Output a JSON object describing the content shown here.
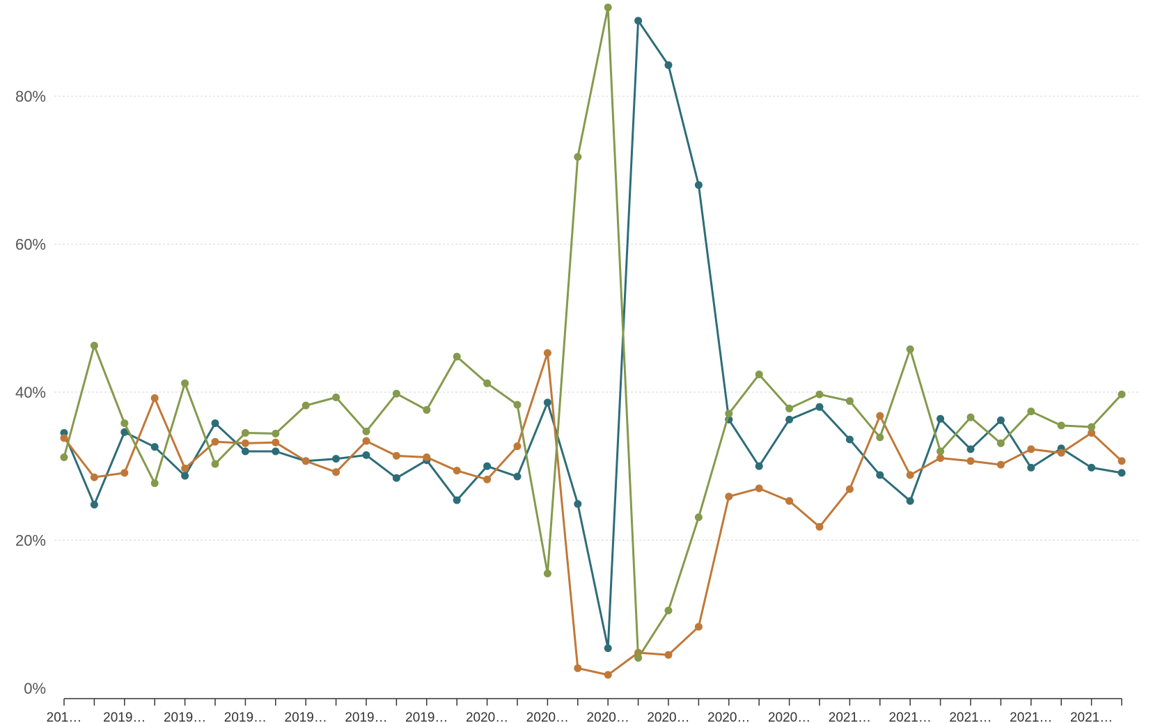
{
  "chart_data": {
    "type": "line",
    "title": "",
    "xlabel": "",
    "ylabel": "",
    "ylim": [
      0,
      0.93
    ],
    "yticks": [
      0,
      0.2,
      0.4,
      0.6,
      0.8
    ],
    "ytick_labels": [
      "0%",
      "20%",
      "40%",
      "60%",
      "80%"
    ],
    "grid": true,
    "legend": "none",
    "x_tick_labels": [
      "201…",
      "2019…",
      "2019…",
      "2019…",
      "2019…",
      "2019…",
      "2019…",
      "2020…",
      "2020…",
      "2020…",
      "2020…",
      "2020…",
      "2020…",
      "2021…",
      "2021…",
      "2021…",
      "2021…",
      "2021…"
    ],
    "series": [
      {
        "color": "#2d6d78",
        "values": [
          0.345,
          0.248,
          0.346,
          0.326,
          0.287,
          0.358,
          0.32,
          0.32,
          0.307,
          0.31,
          0.315,
          0.284,
          0.308,
          0.254,
          0.3,
          0.286,
          0.386,
          0.249,
          0.054,
          0.902,
          0.842,
          0.68,
          0.363,
          0.3,
          0.363,
          0.38,
          0.336,
          0.288,
          0.253,
          0.364,
          0.323,
          0.362,
          0.298,
          0.324,
          0.298,
          0.291
        ]
      },
      {
        "color": "#c07838",
        "values": [
          0.338,
          0.285,
          0.291,
          0.392,
          0.297,
          0.333,
          0.331,
          0.332,
          0.307,
          0.292,
          0.334,
          0.314,
          0.312,
          0.294,
          0.282,
          0.327,
          0.453,
          0.027,
          0.018,
          0.048,
          0.045,
          0.083,
          0.259,
          0.27,
          0.253,
          0.218,
          0.269,
          0.368,
          0.288,
          0.311,
          0.307,
          0.302,
          0.323,
          0.318,
          0.345,
          0.307
        ]
      },
      {
        "color": "#849a4c",
        "values": [
          0.312,
          0.463,
          0.358,
          0.277,
          0.412,
          0.303,
          0.345,
          0.344,
          0.382,
          0.393,
          0.347,
          0.398,
          0.376,
          0.448,
          0.412,
          0.383,
          0.155,
          0.718,
          0.92,
          0.041,
          0.105,
          0.231,
          0.371,
          0.424,
          0.378,
          0.397,
          0.388,
          0.339,
          0.458,
          0.32,
          0.366,
          0.331,
          0.374,
          0.355,
          0.353,
          0.397
        ]
      }
    ]
  }
}
